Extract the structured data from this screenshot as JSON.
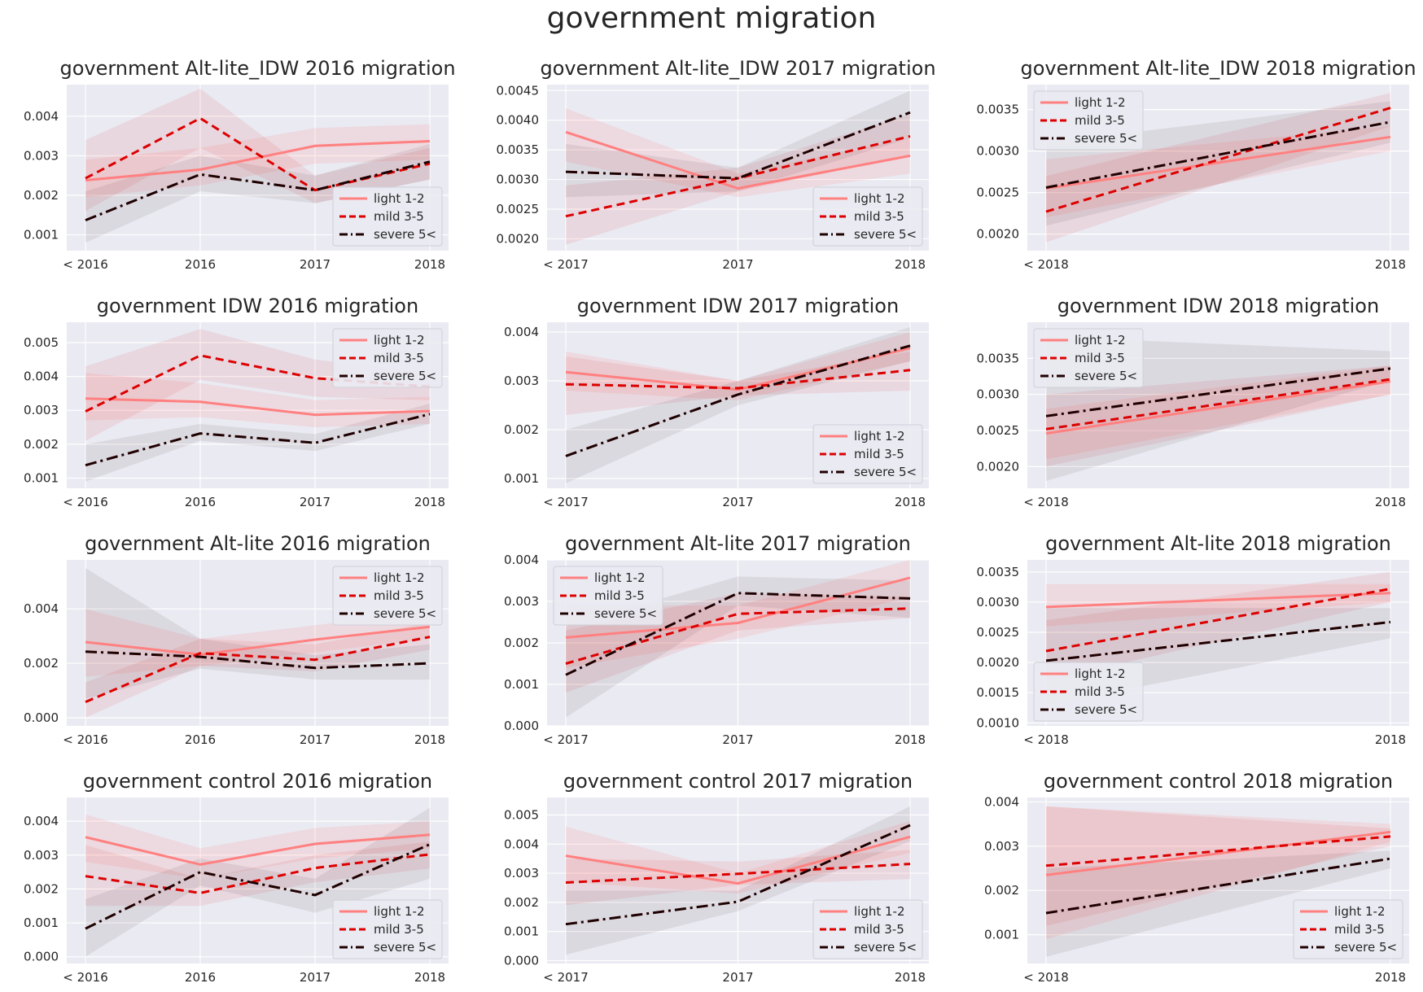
{
  "suptitle": "government migration",
  "colors": {
    "light": "#ff8080",
    "mild": "#dd0000",
    "severe": "#1f0000",
    "panel_bg": "#eaeaf2",
    "grid": "#ffffff",
    "text": "#262626"
  },
  "legend_labels": [
    "light 1-2",
    "mild 3-5",
    "severe 5<"
  ],
  "chart_data": [
    {
      "type": "line",
      "title": "government Alt-lite_IDW 2016 migration",
      "categories": [
        "< 2016",
        "2016",
        "2017",
        "2018"
      ],
      "yticks": [
        "0.001",
        "0.002",
        "0.003",
        "0.004"
      ],
      "ylim": [
        0.0006,
        0.0048
      ],
      "legend": "lower-right",
      "series": [
        {
          "name": "light 1-2",
          "values": [
            0.00238,
            0.00265,
            0.00325,
            0.00337
          ],
          "band_low": [
            0.00195,
            0.00225,
            0.0028,
            0.0029
          ],
          "band_high": [
            0.0029,
            0.0032,
            0.0037,
            0.0038
          ]
        },
        {
          "name": "mild 3-5",
          "values": [
            0.00243,
            0.00395,
            0.00213,
            0.0028
          ],
          "band_low": [
            0.0016,
            0.0032,
            0.0018,
            0.0024
          ],
          "band_high": [
            0.0034,
            0.0047,
            0.0025,
            0.0032
          ]
        },
        {
          "name": "severe 5<",
          "values": [
            0.00137,
            0.00253,
            0.00213,
            0.00285
          ],
          "band_low": [
            0.0008,
            0.0021,
            0.0018,
            0.0024
          ],
          "band_high": [
            0.0021,
            0.003,
            0.0025,
            0.0033
          ]
        }
      ]
    },
    {
      "type": "line",
      "title": "government Alt-lite_IDW 2017 migration",
      "categories": [
        "< 2017",
        "2017",
        "2018"
      ],
      "yticks": [
        "0.0020",
        "0.0025",
        "0.0030",
        "0.0035",
        "0.0040",
        "0.0045"
      ],
      "ylim": [
        0.0018,
        0.0046
      ],
      "legend": "lower-right",
      "series": [
        {
          "name": "light 1-2",
          "values": [
            0.0038,
            0.00285,
            0.0034
          ],
          "band_low": [
            0.0033,
            0.0027,
            0.0031
          ],
          "band_high": [
            0.0042,
            0.0031,
            0.0037
          ]
        },
        {
          "name": "mild 3-5",
          "values": [
            0.00238,
            0.00302,
            0.00373
          ],
          "band_low": [
            0.0019,
            0.0028,
            0.0034
          ],
          "band_high": [
            0.0029,
            0.0032,
            0.0041
          ]
        },
        {
          "name": "severe 5<",
          "values": [
            0.00313,
            0.00302,
            0.00413
          ],
          "band_low": [
            0.0027,
            0.0028,
            0.0037
          ],
          "band_high": [
            0.0036,
            0.0032,
            0.0045
          ]
        }
      ]
    },
    {
      "type": "line",
      "title": "government Alt-lite_IDW 2018 migration",
      "categories": [
        "< 2018",
        "2018"
      ],
      "yticks": [
        "0.0020",
        "0.0025",
        "0.0030",
        "0.0035"
      ],
      "ylim": [
        0.0018,
        0.0038
      ],
      "legend": "upper-left",
      "series": [
        {
          "name": "light 1-2",
          "values": [
            0.00255,
            0.00317
          ],
          "band_low": [
            0.0022,
            0.003
          ],
          "band_high": [
            0.0029,
            0.0033
          ]
        },
        {
          "name": "mild 3-5",
          "values": [
            0.00227,
            0.00352
          ],
          "band_low": [
            0.0019,
            0.0033
          ],
          "band_high": [
            0.0027,
            0.0037
          ]
        },
        {
          "name": "severe 5<",
          "values": [
            0.00256,
            0.00335
          ],
          "band_low": [
            0.0021,
            0.0031
          ],
          "band_high": [
            0.0031,
            0.0036
          ]
        }
      ]
    },
    {
      "type": "line",
      "title": "government IDW 2016 migration",
      "categories": [
        "< 2016",
        "2016",
        "2017",
        "2018"
      ],
      "yticks": [
        "0.001",
        "0.002",
        "0.003",
        "0.004",
        "0.005"
      ],
      "ylim": [
        0.0007,
        0.0056
      ],
      "legend": "upper-right",
      "series": [
        {
          "name": "light 1-2",
          "values": [
            0.00335,
            0.00325,
            0.00287,
            0.00298
          ],
          "band_low": [
            0.0027,
            0.0028,
            0.0025,
            0.0026
          ],
          "band_high": [
            0.0041,
            0.0038,
            0.0033,
            0.0034
          ]
        },
        {
          "name": "mild 3-5",
          "values": [
            0.00297,
            0.00462,
            0.00395,
            0.0037
          ],
          "band_low": [
            0.0021,
            0.0039,
            0.0034,
            0.0033
          ],
          "band_high": [
            0.0043,
            0.0054,
            0.0045,
            0.0041
          ]
        },
        {
          "name": "severe 5<",
          "values": [
            0.00138,
            0.00232,
            0.00204,
            0.00289
          ],
          "band_low": [
            0.0009,
            0.0021,
            0.0018,
            0.0026
          ],
          "band_high": [
            0.002,
            0.0026,
            0.0023,
            0.0032
          ]
        }
      ]
    },
    {
      "type": "line",
      "title": "government IDW 2017 migration",
      "categories": [
        "< 2017",
        "2017",
        "2018"
      ],
      "yticks": [
        "0.001",
        "0.002",
        "0.003",
        "0.004"
      ],
      "ylim": [
        0.0008,
        0.0042
      ],
      "legend": "lower-right",
      "series": [
        {
          "name": "light 1-2",
          "values": [
            0.00318,
            0.00282,
            0.00367
          ],
          "band_low": [
            0.0028,
            0.0026,
            0.0034
          ],
          "band_high": [
            0.0036,
            0.003,
            0.004
          ]
        },
        {
          "name": "mild 3-5",
          "values": [
            0.00293,
            0.00285,
            0.00322
          ],
          "band_low": [
            0.0023,
            0.0027,
            0.0028
          ],
          "band_high": [
            0.0035,
            0.003,
            0.0036
          ]
        },
        {
          "name": "severe 5<",
          "values": [
            0.00146,
            0.00272,
            0.00372
          ],
          "band_low": [
            0.0009,
            0.0025,
            0.0034
          ],
          "band_high": [
            0.002,
            0.003,
            0.0041
          ]
        }
      ]
    },
    {
      "type": "line",
      "title": "government IDW 2018 migration",
      "categories": [
        "< 2018",
        "2018"
      ],
      "yticks": [
        "0.0020",
        "0.0025",
        "0.0030",
        "0.0035"
      ],
      "ylim": [
        0.0017,
        0.004
      ],
      "legend": "upper-left",
      "series": [
        {
          "name": "light 1-2",
          "values": [
            0.00246,
            0.00318
          ],
          "band_low": [
            0.0021,
            0.003
          ],
          "band_high": [
            0.0028,
            0.0034
          ]
        },
        {
          "name": "mild 3-5",
          "values": [
            0.00252,
            0.00321
          ],
          "band_low": [
            0.002,
            0.003
          ],
          "band_high": [
            0.003,
            0.0034
          ]
        },
        {
          "name": "severe 5<",
          "values": [
            0.0027,
            0.00336
          ],
          "band_low": [
            0.0018,
            0.0032
          ],
          "band_high": [
            0.0038,
            0.0036
          ]
        }
      ]
    },
    {
      "type": "line",
      "title": "government Alt-lite 2016 migration",
      "categories": [
        "< 2016",
        "2016",
        "2017",
        "2018"
      ],
      "yticks": [
        "0.000",
        "0.002",
        "0.004"
      ],
      "ylim": [
        -0.0003,
        0.0058
      ],
      "legend": "upper-right",
      "series": [
        {
          "name": "light 1-2",
          "values": [
            0.00278,
            0.00232,
            0.00287,
            0.00334
          ],
          "band_low": [
            0.0015,
            0.0019,
            0.0024,
            0.0029
          ],
          "band_high": [
            0.004,
            0.0029,
            0.0034,
            0.0039
          ]
        },
        {
          "name": "mild 3-5",
          "values": [
            0.00058,
            0.00237,
            0.00213,
            0.00297
          ],
          "band_low": [
            0.0,
            0.0019,
            0.0017,
            0.0025
          ],
          "band_high": [
            0.0013,
            0.0029,
            0.0027,
            0.0035
          ]
        },
        {
          "name": "severe 5<",
          "values": [
            0.00243,
            0.00224,
            0.00183,
            0.002
          ],
          "band_low": [
            0.0007,
            0.0018,
            0.0014,
            0.0014
          ],
          "band_high": [
            0.0055,
            0.0029,
            0.0023,
            0.0027
          ]
        }
      ]
    },
    {
      "type": "line",
      "title": "government Alt-lite 2017 migration",
      "categories": [
        "< 2017",
        "2017",
        "2018"
      ],
      "yticks": [
        "0.000",
        "0.001",
        "0.002",
        "0.003",
        "0.004"
      ],
      "ylim": [
        0.0,
        0.004
      ],
      "legend": "upper-left",
      "series": [
        {
          "name": "light 1-2",
          "values": [
            0.00213,
            0.00248,
            0.00357
          ],
          "band_low": [
            0.0014,
            0.0021,
            0.0031
          ],
          "band_high": [
            0.0029,
            0.0029,
            0.004
          ]
        },
        {
          "name": "mild 3-5",
          "values": [
            0.0015,
            0.0027,
            0.00283
          ],
          "band_low": [
            0.0008,
            0.0023,
            0.0026
          ],
          "band_high": [
            0.0023,
            0.0032,
            0.0031
          ]
        },
        {
          "name": "severe 5<",
          "values": [
            0.00123,
            0.0032,
            0.00307
          ],
          "band_low": [
            0.0002,
            0.0029,
            0.0026
          ],
          "band_high": [
            0.0024,
            0.0036,
            0.0035
          ]
        }
      ]
    },
    {
      "type": "line",
      "title": "government Alt-lite 2018 migration",
      "categories": [
        "< 2018",
        "2018"
      ],
      "yticks": [
        "0.0010",
        "0.0015",
        "0.0020",
        "0.0025",
        "0.0030",
        "0.0035"
      ],
      "ylim": [
        0.00095,
        0.0037
      ],
      "legend": "lower-left",
      "series": [
        {
          "name": "light 1-2",
          "values": [
            0.00292,
            0.00315
          ],
          "band_low": [
            0.0026,
            0.003
          ],
          "band_high": [
            0.0033,
            0.0033
          ]
        },
        {
          "name": "mild 3-5",
          "values": [
            0.00219,
            0.00322
          ],
          "band_low": [
            0.0017,
            0.003
          ],
          "band_high": [
            0.0027,
            0.0035
          ]
        },
        {
          "name": "severe 5<",
          "values": [
            0.00203,
            0.00267
          ],
          "band_low": [
            0.0013,
            0.0024
          ],
          "band_high": [
            0.0029,
            0.0029
          ]
        }
      ]
    },
    {
      "type": "line",
      "title": "government control 2016 migration",
      "categories": [
        "< 2016",
        "2016",
        "2017",
        "2018"
      ],
      "yticks": [
        "0.000",
        "0.001",
        "0.002",
        "0.003",
        "0.004"
      ],
      "ylim": [
        -0.0002,
        0.0047
      ],
      "legend": "lower-right",
      "series": [
        {
          "name": "light 1-2",
          "values": [
            0.00353,
            0.00272,
            0.00333,
            0.0036
          ],
          "band_low": [
            0.0028,
            0.0023,
            0.0029,
            0.0032
          ],
          "band_high": [
            0.0042,
            0.0032,
            0.0038,
            0.004
          ]
        },
        {
          "name": "mild 3-5",
          "values": [
            0.00238,
            0.00188,
            0.00262,
            0.00302
          ],
          "band_low": [
            0.0015,
            0.0015,
            0.0022,
            0.0026
          ],
          "band_high": [
            0.0033,
            0.0023,
            0.003,
            0.0034
          ]
        },
        {
          "name": "severe 5<",
          "values": [
            0.00083,
            0.0025,
            0.00182,
            0.00332
          ],
          "band_low": [
            0.0,
            0.0021,
            0.0013,
            0.0023
          ],
          "band_high": [
            0.0017,
            0.0029,
            0.0023,
            0.0044
          ]
        }
      ]
    },
    {
      "type": "line",
      "title": "government control 2017 migration",
      "categories": [
        "< 2017",
        "2017",
        "2018"
      ],
      "yticks": [
        "0.000",
        "0.001",
        "0.002",
        "0.003",
        "0.004",
        "0.005"
      ],
      "ylim": [
        -0.0001,
        0.0056
      ],
      "legend": "lower-right",
      "series": [
        {
          "name": "light 1-2",
          "values": [
            0.0036,
            0.00265,
            0.00425
          ],
          "band_low": [
            0.0027,
            0.0023,
            0.0037
          ],
          "band_high": [
            0.0046,
            0.003,
            0.0048
          ]
        },
        {
          "name": "mild 3-5",
          "values": [
            0.00268,
            0.00298,
            0.00332
          ],
          "band_low": [
            0.0019,
            0.0026,
            0.0028
          ],
          "band_high": [
            0.0035,
            0.0034,
            0.0038
          ]
        },
        {
          "name": "severe 5<",
          "values": [
            0.00125,
            0.00202,
            0.00465
          ],
          "band_low": [
            0.0002,
            0.0017,
            0.0041
          ],
          "band_high": [
            0.0024,
            0.0024,
            0.0053
          ]
        }
      ]
    },
    {
      "type": "line",
      "title": "government control 2018 migration",
      "categories": [
        "< 2018",
        "2018"
      ],
      "yticks": [
        "0.001",
        "0.002",
        "0.003",
        "0.004"
      ],
      "ylim": [
        0.00035,
        0.0041
      ],
      "legend": "lower-right",
      "series": [
        {
          "name": "light 1-2",
          "values": [
            0.00235,
            0.00332
          ],
          "band_low": [
            0.0009,
            0.0031
          ],
          "band_high": [
            0.0039,
            0.0035
          ]
        },
        {
          "name": "mild 3-5",
          "values": [
            0.00256,
            0.00322
          ],
          "band_low": [
            0.0012,
            0.003
          ],
          "band_high": [
            0.0039,
            0.0034
          ]
        },
        {
          "name": "severe 5<",
          "values": [
            0.00149,
            0.00272
          ],
          "band_low": [
            0.0005,
            0.0025
          ],
          "band_high": [
            0.0025,
            0.0029
          ]
        }
      ]
    }
  ]
}
